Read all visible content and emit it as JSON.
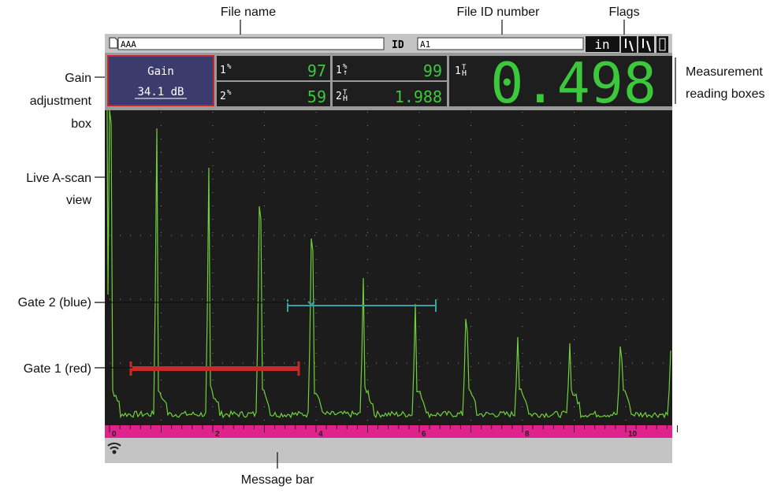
{
  "callouts": {
    "file_name": "File name",
    "file_id": "File ID number",
    "flags": "Flags",
    "gain": [
      "Gain",
      "adjustment",
      "box"
    ],
    "ascan": [
      "Live A-scan",
      "view"
    ],
    "gate2": "Gate 2 (blue)",
    "gate1": "Gate 1 (red)",
    "measurement": [
      "Measurement",
      "reading boxes"
    ],
    "message": "Message bar"
  },
  "header": {
    "file_name": "AAA",
    "id_label": "ID",
    "file_id": "A1",
    "unit": "in"
  },
  "gain": {
    "label": "Gain",
    "value": "34.1 dB"
  },
  "readings": [
    {
      "gate": "1",
      "top": "%",
      "bottom": "",
      "value": "97"
    },
    {
      "gate": "2",
      "top": "%",
      "bottom": "",
      "value": "59"
    },
    {
      "gate": "1",
      "top": "%",
      "bottom": "↑",
      "value": "99"
    },
    {
      "gate": "2",
      "top": "T",
      "bottom": "H",
      "value": "1.988"
    }
  ],
  "main_reading": {
    "gate": "1",
    "top": "T",
    "bottom": "H",
    "value": "0.498"
  },
  "ruler": [
    "0",
    "2",
    "4",
    "6",
    "8",
    "10"
  ]
}
